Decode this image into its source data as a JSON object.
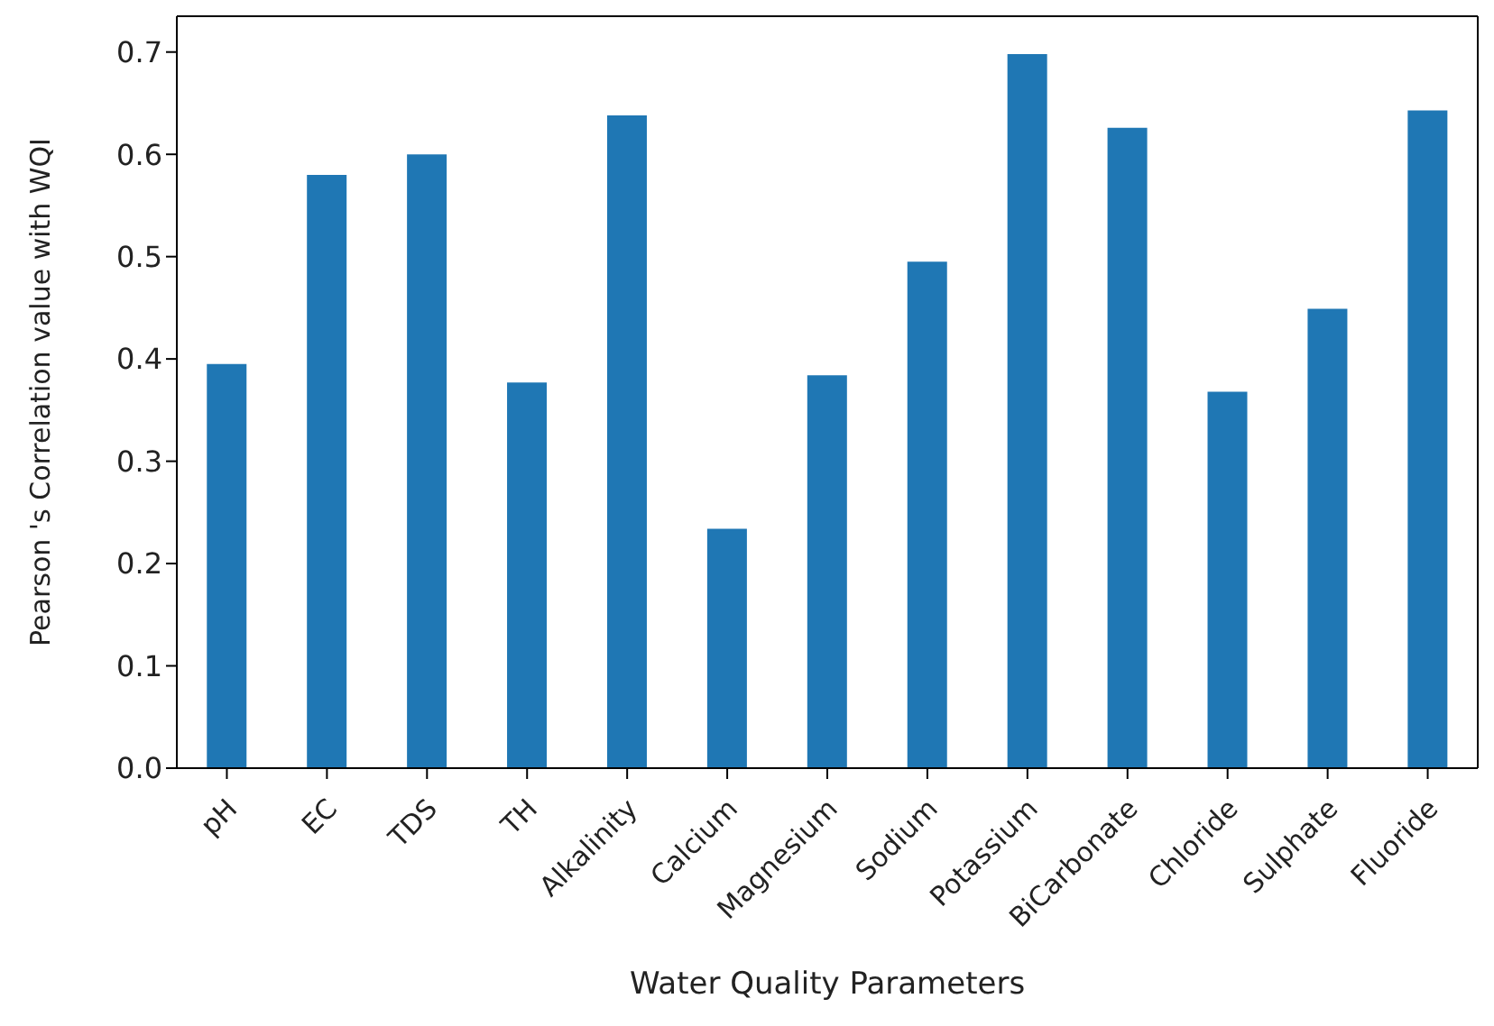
{
  "chart_data": {
    "type": "bar",
    "xlabel": "Water Quality Parameters",
    "ylabel": "Pearson 's Correlation value with WQI",
    "categories": [
      "pH",
      "EC",
      "TDS",
      "TH",
      "Alkalinity",
      "Calcium",
      "Magnesium",
      "Sodium",
      "Potassium",
      "BiCarbonate",
      "Chloride",
      "Sulphate",
      "Fluoride"
    ],
    "values": [
      0.395,
      0.58,
      0.6,
      0.377,
      0.638,
      0.234,
      0.384,
      0.495,
      0.698,
      0.626,
      0.368,
      0.449,
      0.643
    ],
    "color": "#1f77b4",
    "ylim": [
      0,
      0.735
    ],
    "yticks": [
      {
        "value": 0,
        "label": "0.0"
      },
      0.1,
      0.2,
      0.3,
      0.4,
      0.5,
      0.6,
      0.7
    ],
    "grid": false
  }
}
